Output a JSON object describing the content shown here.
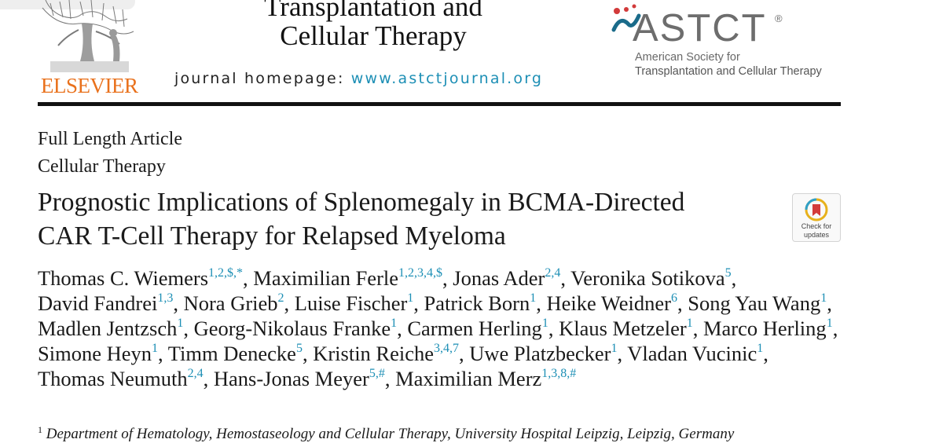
{
  "header": {
    "publisher": "ELSEVIER",
    "journal_title_line1": "Transplantation and",
    "journal_title_line2": "Cellular Therapy",
    "homepage_label": "journal homepage:",
    "homepage_url": "www.astctjournal.org",
    "society_acronym": "ASTCT",
    "society_name_line1": "American Society for",
    "society_name_line2": "Transplantation and Cellular Therapy",
    "registered_mark": "®"
  },
  "article": {
    "type_line1": "Full Length Article",
    "type_line2": "Cellular Therapy",
    "title_line1": "Prognostic Implications of Splenomegaly in BCMA-Directed",
    "title_line2": "CAR T-Cell Therapy for Relapsed Myeloma",
    "check_updates_line1": "Check for",
    "check_updates_line2": "updates"
  },
  "authors": [
    {
      "name": "Thomas C. Wiemers",
      "sup": "1,2,$,*"
    },
    {
      "name": "Maximilian Ferle",
      "sup": "1,2,3,4,$"
    },
    {
      "name": "Jonas Ader",
      "sup": "2,4"
    },
    {
      "name": "Veronika Sotikova",
      "sup": "5"
    },
    {
      "name": "David Fandrei",
      "sup": "1,3"
    },
    {
      "name": "Nora Grieb",
      "sup": "2"
    },
    {
      "name": "Luise Fischer",
      "sup": "1"
    },
    {
      "name": "Patrick Born",
      "sup": "1"
    },
    {
      "name": "Heike Weidner",
      "sup": "6"
    },
    {
      "name": "Song Yau Wang",
      "sup": "1"
    },
    {
      "name": "Madlen Jentzsch",
      "sup": "1"
    },
    {
      "name": "Georg-Nikolaus Franke",
      "sup": "1"
    },
    {
      "name": "Carmen Herling",
      "sup": "1"
    },
    {
      "name": "Klaus Metzeler",
      "sup": "1"
    },
    {
      "name": "Marco Herling",
      "sup": "1"
    },
    {
      "name": "Simone Heyn",
      "sup": "1"
    },
    {
      "name": "Timm Denecke",
      "sup": "5"
    },
    {
      "name": "Kristin Reiche",
      "sup": "3,4,7"
    },
    {
      "name": "Uwe Platzbecker",
      "sup": "1"
    },
    {
      "name": "Vladan Vucinic",
      "sup": "1"
    },
    {
      "name": "Thomas Neumuth",
      "sup": "2,4"
    },
    {
      "name": "Hans-Jonas Meyer",
      "sup": "5,#"
    },
    {
      "name": "Maximilian Merz",
      "sup": "1,3,8,#"
    }
  ],
  "affiliation": {
    "sup": "1",
    "text": "Department of Hematology, Hemostaseology and Cellular Therapy, University Hospital Leipzig, Leipzig, Germany"
  },
  "colors": {
    "publisher_orange": "#e9711c",
    "link_blue": "#1d8fb5",
    "society_teal": "#1a6b8a",
    "society_red": "#d23a3a",
    "rule_black": "#111111"
  }
}
